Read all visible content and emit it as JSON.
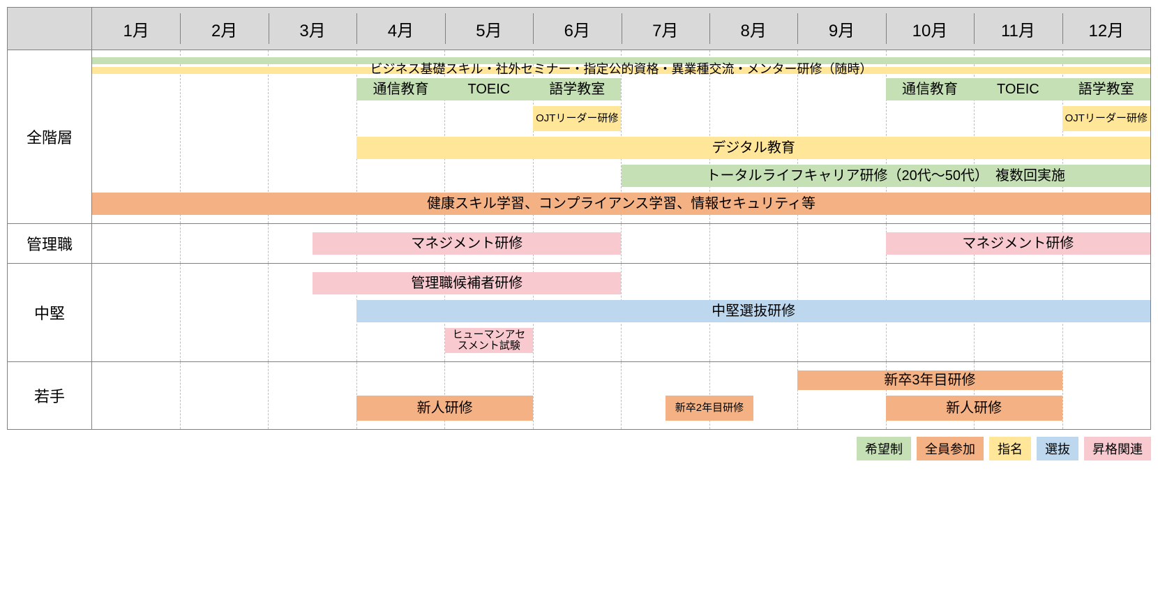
{
  "colors": {
    "green": "#c5e0b4",
    "orange": "#f4b183",
    "yellow": "#ffe699",
    "blue": "#bdd7ee",
    "pink": "#f8cad0",
    "header_bg": "#d9d9d9",
    "grid": "#bfbfbf",
    "border": "#808080"
  },
  "months": [
    "1月",
    "2月",
    "3月",
    "4月",
    "5月",
    "6月",
    "7月",
    "8月",
    "9月",
    "10月",
    "11月",
    "12月"
  ],
  "rows": [
    {
      "label": "全階層",
      "lanes": [
        {
          "h": "thin",
          "bars": [
            {
              "start": 0,
              "end": 12,
              "color": "green",
              "label": ""
            }
          ]
        },
        {
          "h": "thin",
          "bars": [
            {
              "start": 0,
              "end": 12,
              "color": "yellow",
              "label": "ビジネス基礎スキル・社外セミナー・指定公的資格・異業種交流・メンター研修（随時）",
              "fs": 18,
              "text_top": true
            }
          ]
        },
        {
          "h": "normal",
          "bars": [
            {
              "start": 3,
              "end": 4,
              "color": "green",
              "label": "通信教育"
            },
            {
              "start": 4,
              "end": 5,
              "color": "green",
              "label": "TOEIC"
            },
            {
              "start": 5,
              "end": 6,
              "color": "green",
              "label": "語学教室"
            },
            {
              "start": 9,
              "end": 10,
              "color": "green",
              "label": "通信教育"
            },
            {
              "start": 10,
              "end": 11,
              "color": "green",
              "label": "TOEIC"
            },
            {
              "start": 11,
              "end": 12,
              "color": "green",
              "label": "語学教室"
            }
          ]
        },
        {
          "h": "small",
          "bars": [
            {
              "start": 5,
              "end": 6,
              "color": "yellow",
              "label": "OJTリーダー研修",
              "small": true
            },
            {
              "start": 11,
              "end": 12,
              "color": "yellow",
              "label": "OJTリーダー研修",
              "small": true
            }
          ]
        },
        {
          "h": "normal",
          "bars": [
            {
              "start": 3,
              "end": 12,
              "color": "yellow",
              "label": "デジタル教育"
            }
          ]
        },
        {
          "h": "normal",
          "bars": [
            {
              "start": 6,
              "end": 12,
              "color": "green",
              "label": "トータルライフキャリア研修（20代～50代）　複数回実施"
            }
          ]
        },
        {
          "h": "normal",
          "bars": [
            {
              "start": 0,
              "end": 12,
              "color": "orange",
              "label": "健康スキル学習、コンプライアンス学習、情報セキュリティ等"
            }
          ]
        }
      ]
    },
    {
      "label": "管理職",
      "lanes": [
        {
          "h": "normal",
          "bars": [
            {
              "start": 2.5,
              "end": 6,
              "color": "pink",
              "label": "マネジメント研修"
            },
            {
              "start": 9,
              "end": 12,
              "color": "pink",
              "label": "マネジメント研修"
            }
          ]
        }
      ]
    },
    {
      "label": "中堅",
      "lanes": [
        {
          "h": "normal",
          "bars": [
            {
              "start": 2.5,
              "end": 6,
              "color": "pink",
              "label": "管理職候補者研修"
            }
          ]
        },
        {
          "h": "normal",
          "bars": [
            {
              "start": 3,
              "end": 12,
              "color": "blue",
              "label": "中堅選抜研修"
            }
          ]
        },
        {
          "h": "small",
          "bars": [
            {
              "start": 4,
              "end": 5,
              "color": "pink",
              "label": "ヒューマンアセスメント試験",
              "small": true
            }
          ]
        }
      ]
    },
    {
      "label": "若手",
      "lanes": [
        {
          "h": "short",
          "bars": [
            {
              "start": 8,
              "end": 11,
              "color": "orange",
              "label": "新卒3年目研修"
            }
          ]
        },
        {
          "h": "small",
          "bars": [
            {
              "start": 3,
              "end": 5,
              "color": "orange",
              "label": "新人研修"
            },
            {
              "start": 6.5,
              "end": 7.5,
              "color": "orange",
              "label": "新卒2年目研修",
              "small": true
            },
            {
              "start": 9,
              "end": 11,
              "color": "orange",
              "label": "新人研修"
            }
          ]
        }
      ]
    }
  ],
  "legend": [
    {
      "label": "希望制",
      "color": "green"
    },
    {
      "label": "全員参加",
      "color": "orange"
    },
    {
      "label": "指名",
      "color": "yellow"
    },
    {
      "label": "選抜",
      "color": "blue"
    },
    {
      "label": "昇格関連",
      "color": "pink"
    }
  ]
}
